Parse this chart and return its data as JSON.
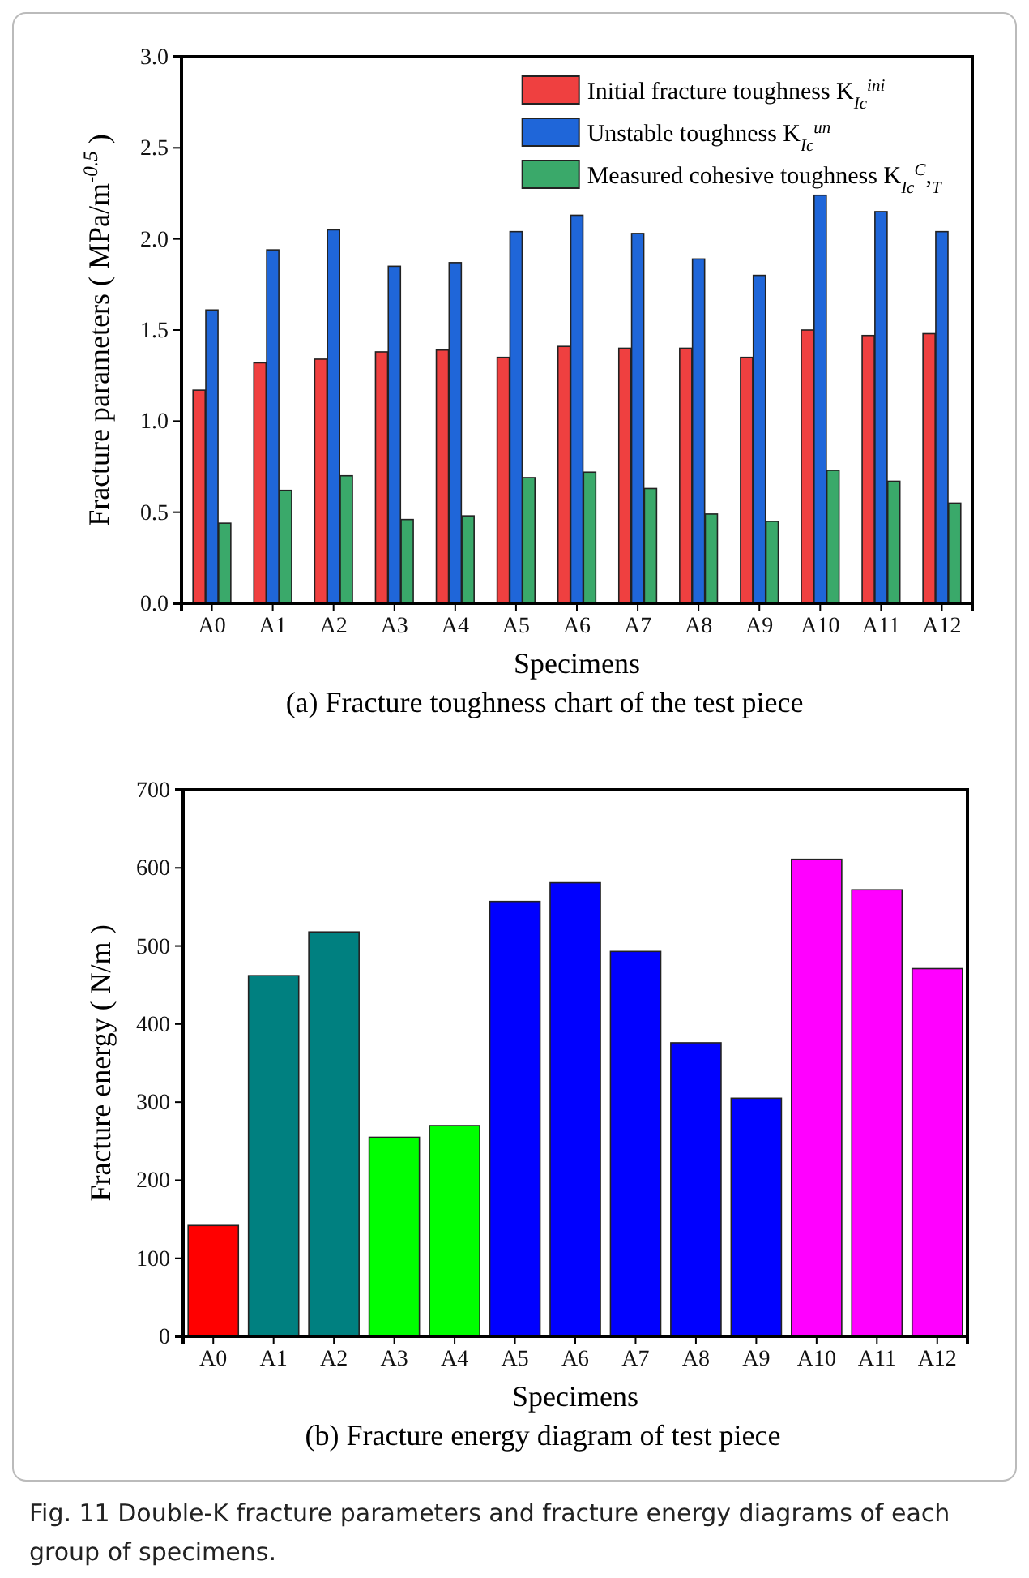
{
  "chart_data": [
    {
      "type": "bar",
      "ylabel": "Fracture parameters ( MPa/m$^{-0.5}$ )",
      "xlabel": "Specimens",
      "categories": [
        "A0",
        "A1",
        "A2",
        "A3",
        "A4",
        "A5",
        "A6",
        "A7",
        "A8",
        "A9",
        "A10",
        "A11",
        "A12"
      ],
      "series": [
        {
          "name": "Initial fracture toughness K$_{Ic}$$^{ini}$",
          "color": "#ef4040",
          "values": [
            1.17,
            1.32,
            1.34,
            1.38,
            1.39,
            1.35,
            1.41,
            1.4,
            1.4,
            1.35,
            1.5,
            1.47,
            1.48
          ]
        },
        {
          "name": "Unstable toughness K$_{Ic}$$^{un}$",
          "color": "#1f66d9",
          "values": [
            1.61,
            1.94,
            2.05,
            1.85,
            1.87,
            2.04,
            2.13,
            2.03,
            1.89,
            1.8,
            2.24,
            2.15,
            2.04
          ]
        },
        {
          "name": "Measured cohesive toughness K$_{Ic}$$^{C}$,$_{T}$",
          "color": "#3aa96a",
          "values": [
            0.44,
            0.62,
            0.7,
            0.46,
            0.48,
            0.69,
            0.72,
            0.63,
            0.49,
            0.45,
            0.73,
            0.67,
            0.55
          ]
        }
      ],
      "ylim": [
        0,
        3
      ],
      "yticks": [
        {
          "value": 0,
          "label": "0.0"
        },
        {
          "value": 0.5,
          "label": "0.5"
        },
        {
          "value": 1,
          "label": "1.0"
        },
        {
          "value": 1.5,
          "label": "1.5"
        },
        {
          "value": 2,
          "label": "2.0"
        },
        {
          "value": 2.5,
          "label": "2.5"
        },
        {
          "value": 3,
          "label": "3.0"
        }
      ],
      "legend": "top right",
      "grid": false,
      "annotations": [
        "(a) Fracture toughness chart of the test piece"
      ]
    },
    {
      "type": "bar",
      "ylabel": "Fracture energy ( N/m )",
      "xlabel": "Specimens",
      "categories": [
        "A0",
        "A1",
        "A2",
        "A3",
        "A4",
        "A5",
        "A6",
        "A7",
        "A8",
        "A9",
        "A10",
        "A11",
        "A12"
      ],
      "values": [
        142,
        462,
        518,
        255,
        270,
        557,
        581,
        493,
        376,
        305,
        611,
        572,
        471
      ],
      "colors": [
        "#ff0000",
        "#008080",
        "#008080",
        "#00ff00",
        "#00ff00",
        "#0000ff",
        "#0000ff",
        "#0000ff",
        "#0000ff",
        "#0000ff",
        "#ff00ff",
        "#ff00ff",
        "#ff00ff"
      ],
      "ylim": [
        0,
        700
      ],
      "yticks": [
        0,
        100,
        200,
        300,
        400,
        500,
        600,
        700
      ],
      "grid": false,
      "annotations": [
        "(b) Fracture energy diagram of test piece",
        "Fig. 11 Double-K fracture parameters and fracture energy diagrams of each group of specimens."
      ]
    }
  ]
}
